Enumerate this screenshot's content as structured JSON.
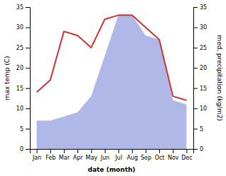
{
  "chart_data": {
    "type": "line",
    "x_label": "date (month)",
    "y_label": "max temp (C)",
    "y2_label": "med. precipitation (kg/m2)",
    "categories": [
      "Jan",
      "Feb",
      "Mar",
      "Apr",
      "May",
      "Jun",
      "Jul",
      "Aug",
      "Sep",
      "Oct",
      "Nov",
      "Dec"
    ],
    "series": [
      {
        "type": "area",
        "axis": "y2",
        "color": "#b0b8e8",
        "values": [
          7,
          7,
          8,
          9,
          13,
          23,
          33,
          33,
          28,
          27,
          12,
          11
        ]
      },
      {
        "type": "line",
        "color": "#cc3333",
        "values": [
          14,
          17,
          29,
          28,
          25,
          32,
          33,
          33,
          30,
          27,
          13,
          12
        ]
      }
    ],
    "ylim": [
      0,
      35
    ],
    "yticks": [
      0,
      5,
      10,
      15,
      20,
      25,
      30,
      35
    ],
    "y2lim": [
      0,
      35
    ],
    "y2ticks": [
      0,
      5,
      10,
      15,
      20,
      25,
      30,
      35
    ],
    "grid": false
  }
}
